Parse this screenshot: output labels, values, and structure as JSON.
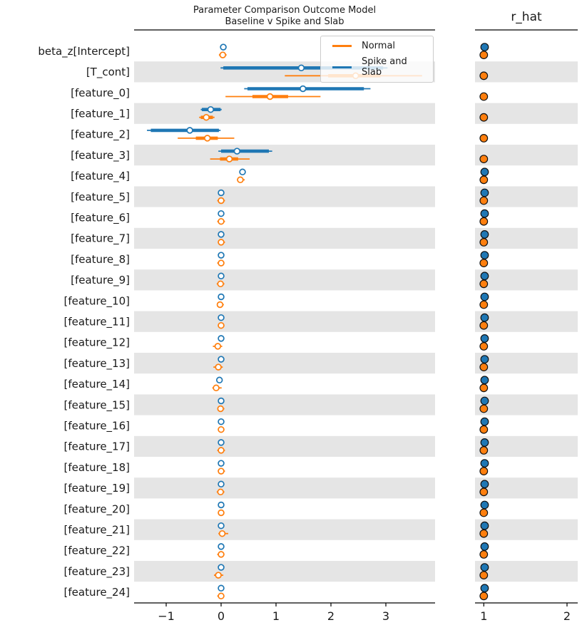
{
  "chart_data": {
    "type": "forest",
    "title_line1": "Parameter Comparison Outcome Model",
    "title_line2": "Baseline v Spike and Slab",
    "rhat_panel": {
      "title": "r_hat"
    },
    "legend": [
      {
        "label": "Normal",
        "color": "#ff7f0e"
      },
      {
        "label": "Spike and Slab",
        "color": "#1f77b4"
      }
    ],
    "colors": {
      "normal": "#ff7f0e",
      "spike": "#1f77b4",
      "band": "#e5e5e5",
      "spine": "#000000",
      "text": "#1a1a1a"
    },
    "axes": {
      "left": {
        "tick_labels": [
          "−1",
          "0",
          "1",
          "2",
          "3"
        ],
        "tick_values": [
          -1,
          0,
          1,
          2,
          3
        ],
        "range": [
          -1.58,
          3.9
        ]
      },
      "rhat": {
        "tick_labels": [
          "1",
          "2"
        ],
        "tick_values": [
          1,
          2
        ],
        "range": [
          0.9,
          2.13
        ]
      }
    },
    "rows": [
      {
        "label": "beta_z[Intercept]",
        "shaded": false,
        "spike": {
          "med": 0.04
        },
        "normal": {
          "lo": -0.04,
          "hi": 0.1,
          "med": 0.03
        },
        "rhat": {
          "spike": 1.01,
          "normal": 1.0
        }
      },
      {
        "label": "[T_cont]",
        "shaded": true,
        "spike": {
          "lo": -0.01,
          "hi": 3.03,
          "q1": 0.04,
          "q3": 2.95,
          "med": 1.46
        },
        "normal": {
          "lo": 1.16,
          "hi": 3.66,
          "q1": 1.95,
          "q3": 2.9,
          "med": 2.45
        },
        "rhat": {
          "spike": null,
          "normal": 1.0
        }
      },
      {
        "label": "[feature_0]",
        "shaded": false,
        "spike": {
          "lo": 0.42,
          "hi": 2.72,
          "q1": 0.48,
          "q3": 2.6,
          "med": 1.49
        },
        "normal": {
          "lo": 0.08,
          "hi": 1.81,
          "q1": 0.57,
          "q3": 1.22,
          "med": 0.89
        },
        "rhat": {
          "spike": null,
          "normal": 1.0
        }
      },
      {
        "label": "[feature_1]",
        "shaded": true,
        "spike": {
          "lo": -0.37,
          "hi": 0.01,
          "q1": -0.35,
          "q3": -0.01,
          "med": -0.19
        },
        "normal": {
          "lo": -0.4,
          "hi": -0.12,
          "q1": -0.37,
          "q3": -0.15,
          "med": -0.27
        },
        "rhat": {
          "spike": null,
          "normal": 1.0
        }
      },
      {
        "label": "[feature_2]",
        "shaded": false,
        "spike": {
          "lo": -1.35,
          "hi": -0.01,
          "q1": -1.28,
          "q3": -0.04,
          "med": -0.57
        },
        "normal": {
          "lo": -0.79,
          "hi": 0.24,
          "q1": -0.46,
          "q3": -0.06,
          "med": -0.25
        },
        "rhat": {
          "spike": null,
          "normal": 1.0
        }
      },
      {
        "label": "[feature_3]",
        "shaded": true,
        "spike": {
          "lo": -0.05,
          "hi": 0.93,
          "q1": 0.0,
          "q3": 0.87,
          "med": 0.29
        },
        "normal": {
          "lo": -0.2,
          "hi": 0.52,
          "q1": -0.02,
          "q3": 0.31,
          "med": 0.15
        },
        "rhat": {
          "spike": null,
          "normal": 1.0
        }
      },
      {
        "label": "[feature_4]",
        "shaded": false,
        "spike": {
          "med": 0.39
        },
        "normal": {
          "lo": 0.29,
          "hi": 0.43,
          "med": 0.35
        },
        "rhat": {
          "spike": 1.01,
          "normal": 1.0
        }
      },
      {
        "label": "[feature_5]",
        "shaded": true,
        "spike": {
          "med": 0.0
        },
        "normal": {
          "lo": -0.07,
          "hi": 0.07,
          "med": 0.0
        },
        "rhat": {
          "spike": 1.01,
          "normal": 1.0
        }
      },
      {
        "label": "[feature_6]",
        "shaded": false,
        "spike": {
          "med": 0.0
        },
        "normal": {
          "lo": -0.07,
          "hi": 0.07,
          "med": 0.0
        },
        "rhat": {
          "spike": 1.01,
          "normal": 1.0
        }
      },
      {
        "label": "[feature_7]",
        "shaded": true,
        "spike": {
          "med": 0.0
        },
        "normal": {
          "lo": -0.06,
          "hi": 0.07,
          "med": 0.0
        },
        "rhat": {
          "spike": 1.01,
          "normal": 1.0
        }
      },
      {
        "label": "[feature_8]",
        "shaded": false,
        "spike": {
          "med": 0.0
        },
        "normal": {
          "lo": -0.07,
          "hi": 0.06,
          "med": 0.0
        },
        "rhat": {
          "spike": 1.01,
          "normal": 1.0
        }
      },
      {
        "label": "[feature_9]",
        "shaded": true,
        "spike": {
          "med": 0.0
        },
        "normal": {
          "lo": -0.08,
          "hi": 0.06,
          "med": -0.01
        },
        "rhat": {
          "spike": 1.01,
          "normal": 1.0
        }
      },
      {
        "label": "[feature_10]",
        "shaded": false,
        "spike": {
          "med": 0.0
        },
        "normal": {
          "lo": -0.07,
          "hi": 0.05,
          "med": -0.02
        },
        "rhat": {
          "spike": 1.01,
          "normal": 1.0
        }
      },
      {
        "label": "[feature_11]",
        "shaded": true,
        "spike": {
          "med": 0.0
        },
        "normal": {
          "lo": -0.06,
          "hi": 0.06,
          "med": 0.0
        },
        "rhat": {
          "spike": 1.01,
          "normal": 1.0
        }
      },
      {
        "label": "[feature_12]",
        "shaded": false,
        "spike": {
          "med": 0.0
        },
        "normal": {
          "lo": -0.15,
          "hi": 0.02,
          "med": -0.06
        },
        "rhat": {
          "spike": 1.01,
          "normal": 1.0
        }
      },
      {
        "label": "[feature_13]",
        "shaded": true,
        "spike": {
          "med": 0.0
        },
        "normal": {
          "lo": -0.14,
          "hi": 0.03,
          "med": -0.05
        },
        "rhat": {
          "spike": 1.01,
          "normal": 1.0
        }
      },
      {
        "label": "[feature_14]",
        "shaded": false,
        "spike": {
          "med": -0.03
        },
        "normal": {
          "lo": -0.16,
          "hi": 0.01,
          "med": -0.09
        },
        "rhat": {
          "spike": 1.01,
          "normal": 1.0
        }
      },
      {
        "label": "[feature_15]",
        "shaded": true,
        "spike": {
          "med": 0.0
        },
        "normal": {
          "lo": -0.07,
          "hi": 0.06,
          "med": -0.01
        },
        "rhat": {
          "spike": 1.01,
          "normal": 1.0
        }
      },
      {
        "label": "[feature_16]",
        "shaded": false,
        "spike": {
          "med": 0.0
        },
        "normal": {
          "lo": -0.06,
          "hi": 0.06,
          "med": 0.0
        },
        "rhat": {
          "spike": 1.01,
          "normal": 1.0
        }
      },
      {
        "label": "[feature_17]",
        "shaded": true,
        "spike": {
          "med": 0.0
        },
        "normal": {
          "lo": -0.07,
          "hi": 0.07,
          "med": 0.0
        },
        "rhat": {
          "spike": 1.01,
          "normal": 1.0
        }
      },
      {
        "label": "[feature_18]",
        "shaded": false,
        "spike": {
          "med": 0.0
        },
        "normal": {
          "lo": -0.06,
          "hi": 0.07,
          "med": 0.0
        },
        "rhat": {
          "spike": 1.01,
          "normal": 1.0
        }
      },
      {
        "label": "[feature_19]",
        "shaded": true,
        "spike": {
          "med": 0.0
        },
        "normal": {
          "lo": -0.08,
          "hi": 0.06,
          "med": -0.01
        },
        "rhat": {
          "spike": 1.01,
          "normal": 1.0
        }
      },
      {
        "label": "[feature_20]",
        "shaded": false,
        "spike": {
          "med": 0.0
        },
        "normal": {
          "lo": -0.06,
          "hi": 0.06,
          "med": 0.0
        },
        "rhat": {
          "spike": 1.01,
          "normal": 1.0
        }
      },
      {
        "label": "[feature_21]",
        "shaded": true,
        "spike": {
          "med": 0.0
        },
        "normal": {
          "lo": -0.05,
          "hi": 0.13,
          "med": 0.02
        },
        "rhat": {
          "spike": 1.01,
          "normal": 1.0
        }
      },
      {
        "label": "[feature_22]",
        "shaded": false,
        "spike": {
          "med": 0.0
        },
        "normal": {
          "lo": -0.07,
          "hi": 0.06,
          "med": 0.0
        },
        "rhat": {
          "spike": 1.01,
          "normal": 1.0
        }
      },
      {
        "label": "[feature_23]",
        "shaded": true,
        "spike": {
          "med": 0.0
        },
        "normal": {
          "lo": -0.13,
          "hi": 0.04,
          "med": -0.05
        },
        "rhat": {
          "spike": 1.01,
          "normal": 1.0
        }
      },
      {
        "label": "[feature_24]",
        "shaded": false,
        "spike": {
          "med": 0.0
        },
        "normal": {
          "lo": -0.07,
          "hi": 0.06,
          "med": 0.0
        },
        "rhat": {
          "spike": 1.01,
          "normal": 1.0
        }
      }
    ]
  }
}
